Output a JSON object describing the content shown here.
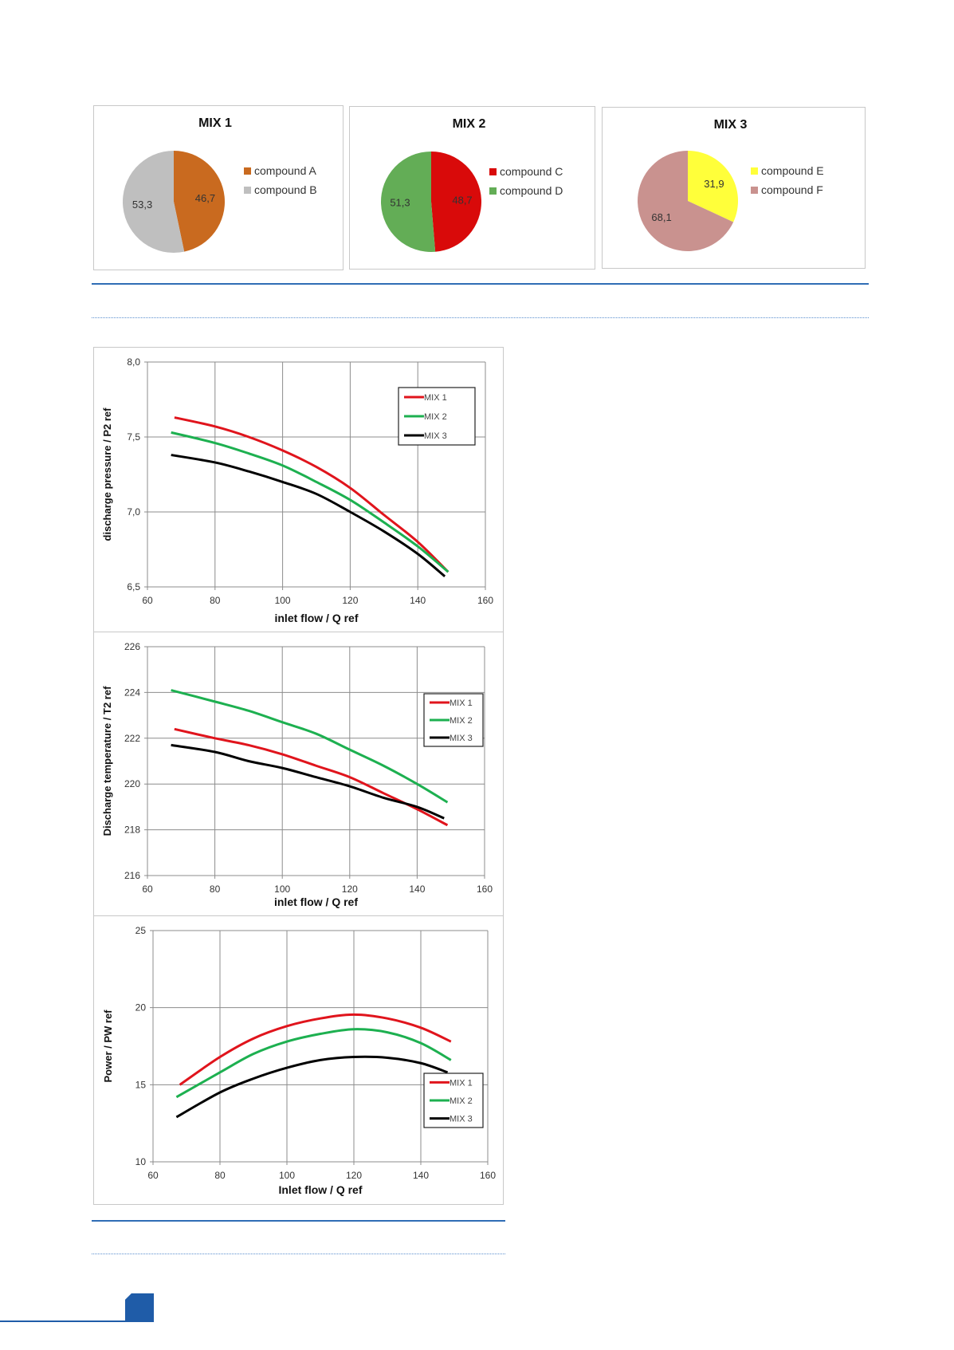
{
  "colors": {
    "accent": "#2f6db5",
    "tab": "#1f5ca8"
  },
  "chart_data": [
    {
      "type": "pie",
      "title": "MIX 1",
      "labels": [
        "compound A",
        "compound B"
      ],
      "values": [
        46.7,
        53.3
      ],
      "value_labels": [
        "46,7",
        "53,3"
      ],
      "colors": [
        "#c96a1f",
        "#bfbfbf"
      ],
      "legend": "right"
    },
    {
      "type": "pie",
      "title": "MIX 2",
      "labels": [
        "compound C",
        "compound D"
      ],
      "values": [
        48.7,
        51.3
      ],
      "value_labels": [
        "48,7",
        "51,3"
      ],
      "colors": [
        "#d90a0a",
        "#63ad56"
      ],
      "legend": "right"
    },
    {
      "type": "pie",
      "title": "MIX 3",
      "labels": [
        "compound E",
        "compound F"
      ],
      "values": [
        31.9,
        68.1
      ],
      "value_labels": [
        "31,9",
        "68,1"
      ],
      "colors": [
        "#ffff3a",
        "#c9928f"
      ],
      "legend": "right"
    },
    {
      "type": "line",
      "xlabel": "inlet flow / Q ref",
      "ylabel": "discharge pressure / P2 ref",
      "xlim": [
        60,
        160
      ],
      "ylim": [
        6.5,
        8.0
      ],
      "xticks": [
        "60",
        "80",
        "100",
        "120",
        "140",
        "160"
      ],
      "yticks": [
        "6,5",
        "7,0",
        "7,5",
        "8,0"
      ],
      "ytick_values": [
        6.5,
        7.0,
        7.5,
        8.0
      ],
      "grid": true,
      "legend": "top-right",
      "series": [
        {
          "name": "MIX 1",
          "color": "#e0141c",
          "x": [
            68,
            80,
            90,
            100,
            110,
            120,
            130,
            140,
            149
          ],
          "y": [
            7.63,
            7.57,
            7.5,
            7.41,
            7.3,
            7.16,
            6.98,
            6.8,
            6.6
          ]
        },
        {
          "name": "MIX 2",
          "color": "#1db050",
          "x": [
            67,
            80,
            90,
            100,
            110,
            120,
            130,
            140,
            149
          ],
          "y": [
            7.53,
            7.46,
            7.39,
            7.31,
            7.2,
            7.08,
            6.93,
            6.77,
            6.6
          ]
        },
        {
          "name": "MIX 3",
          "color": "#000000",
          "x": [
            67,
            80,
            90,
            100,
            110,
            120,
            130,
            140,
            148
          ],
          "y": [
            7.38,
            7.33,
            7.27,
            7.2,
            7.12,
            7.0,
            6.87,
            6.72,
            6.57
          ]
        }
      ]
    },
    {
      "type": "line",
      "xlabel": "inlet flow / Q ref",
      "ylabel": "Discharge temperature / T2 ref",
      "xlim": [
        60,
        160
      ],
      "ylim": [
        216,
        226
      ],
      "xticks": [
        "60",
        "80",
        "100",
        "120",
        "140",
        "160"
      ],
      "yticks": [
        "216",
        "218",
        "220",
        "222",
        "224",
        "226"
      ],
      "ytick_values": [
        216,
        218,
        220,
        222,
        224,
        226
      ],
      "grid": true,
      "legend": "right",
      "series": [
        {
          "name": "MIX 1",
          "color": "#e0141c",
          "x": [
            68,
            80,
            90,
            100,
            110,
            120,
            130,
            140,
            149
          ],
          "y": [
            222.4,
            222.0,
            221.7,
            221.3,
            220.8,
            220.3,
            219.6,
            218.9,
            218.2
          ]
        },
        {
          "name": "MIX 2",
          "color": "#1db050",
          "x": [
            67,
            80,
            90,
            100,
            110,
            120,
            130,
            140,
            149
          ],
          "y": [
            224.1,
            223.6,
            223.2,
            222.7,
            222.2,
            221.5,
            220.8,
            220.0,
            219.2
          ]
        },
        {
          "name": "MIX 3",
          "color": "#000000",
          "x": [
            67,
            80,
            90,
            100,
            110,
            120,
            130,
            140,
            148
          ],
          "y": [
            221.7,
            221.4,
            221.0,
            220.7,
            220.3,
            219.9,
            219.4,
            219.0,
            218.5
          ]
        }
      ]
    },
    {
      "type": "line",
      "xlabel": "Inlet flow / Q ref",
      "ylabel": "Power / PW ref",
      "xlim": [
        60,
        160
      ],
      "ylim": [
        10,
        25
      ],
      "xticks": [
        "60",
        "80",
        "100",
        "120",
        "140",
        "160"
      ],
      "yticks": [
        "10",
        "15",
        "20",
        "25"
      ],
      "ytick_values": [
        10,
        15,
        20,
        25
      ],
      "grid": true,
      "legend": "bottom-right",
      "series": [
        {
          "name": "MIX 1",
          "color": "#e0141c",
          "x": [
            68,
            80,
            90,
            100,
            110,
            120,
            130,
            140,
            149
          ],
          "y": [
            15.0,
            16.8,
            18.0,
            18.8,
            19.3,
            19.55,
            19.3,
            18.7,
            17.8
          ]
        },
        {
          "name": "MIX 2",
          "color": "#1db050",
          "x": [
            67,
            80,
            90,
            100,
            110,
            120,
            130,
            140,
            149
          ],
          "y": [
            14.2,
            15.8,
            17.0,
            17.8,
            18.3,
            18.6,
            18.4,
            17.7,
            16.6
          ]
        },
        {
          "name": "MIX 3",
          "color": "#000000",
          "x": [
            67,
            80,
            90,
            100,
            110,
            120,
            130,
            140,
            148
          ],
          "y": [
            12.9,
            14.5,
            15.4,
            16.1,
            16.6,
            16.8,
            16.75,
            16.4,
            15.8
          ]
        }
      ]
    }
  ]
}
